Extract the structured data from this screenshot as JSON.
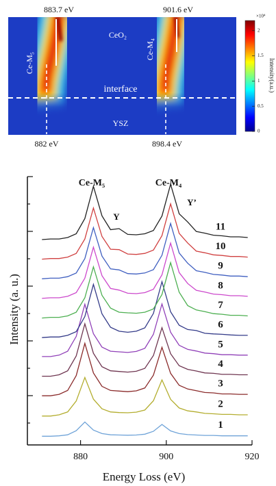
{
  "chart_data": [
    {
      "type": "heatmap",
      "peak_labels": [
        "883.7 eV",
        "901.6 eV"
      ],
      "onset_labels": [
        "882 eV",
        "898.4 eV"
      ],
      "region_labels": [
        "CeO₂",
        "interface",
        "YSZ"
      ],
      "edge_labels": [
        "Ce-M₅",
        "Ce-M₄"
      ],
      "colorbar_label": "Intensity(a.u.)",
      "colorbar_exponent": "×10⁴",
      "clim": [
        0,
        2.2
      ],
      "cticks": [
        0,
        0.5,
        1,
        1.5,
        2
      ]
    },
    {
      "type": "line",
      "xlabel": "Energy Loss (eV)",
      "ylabel": "Intensity (a. u.)",
      "annotations": [
        "Ce-M₅",
        "Ce-M₄",
        "Y",
        "Y’"
      ],
      "xlim": [
        870,
        920
      ],
      "xticks": [
        880,
        900,
        920
      ],
      "ylim": [
        0,
        13
      ],
      "x": [
        871,
        873,
        875,
        877,
        879,
        881,
        883,
        885,
        887,
        889,
        891,
        893,
        895,
        897,
        899,
        901,
        903,
        905,
        907,
        909,
        911,
        913,
        915,
        917,
        919
      ],
      "series": [
        {
          "name": "1",
          "color": "#6fa3d8",
          "values": [
            0.42,
            0.42,
            0.44,
            0.49,
            0.69,
            1.11,
            0.72,
            0.55,
            0.49,
            0.48,
            0.47,
            0.48,
            0.52,
            0.66,
            0.99,
            0.68,
            0.55,
            0.5,
            0.48,
            0.46,
            0.46,
            0.44,
            0.44,
            0.44,
            0.44
          ]
        },
        {
          "name": "2",
          "color": "#b3ad2e",
          "values": [
            1.4,
            1.4,
            1.46,
            1.6,
            2.13,
            3.27,
            2.22,
            1.75,
            1.6,
            1.57,
            1.56,
            1.59,
            1.69,
            2.14,
            3.15,
            2.21,
            1.79,
            1.65,
            1.6,
            1.53,
            1.51,
            1.48,
            1.48,
            1.46,
            1.46
          ]
        },
        {
          "name": "3",
          "color": "#8a2a2a",
          "values": [
            2.38,
            2.38,
            2.45,
            2.64,
            3.36,
            4.92,
            3.49,
            2.84,
            2.64,
            2.61,
            2.58,
            2.62,
            2.76,
            3.38,
            4.73,
            3.47,
            2.89,
            2.71,
            2.63,
            2.54,
            2.52,
            2.47,
            2.47,
            2.45,
            2.45
          ]
        },
        {
          "name": "4",
          "color": "#6e3550",
          "values": [
            3.33,
            3.33,
            3.4,
            3.59,
            4.31,
            5.87,
            4.44,
            3.79,
            3.59,
            3.56,
            3.53,
            3.57,
            3.71,
            4.33,
            5.68,
            4.42,
            3.84,
            3.66,
            3.58,
            3.49,
            3.47,
            3.42,
            3.42,
            3.4,
            3.4
          ]
        },
        {
          "name": "5",
          "color": "#9040b8",
          "values": [
            4.28,
            4.28,
            4.35,
            4.54,
            5.26,
            6.82,
            5.39,
            4.74,
            4.54,
            4.51,
            4.48,
            4.53,
            4.68,
            5.36,
            6.83,
            5.46,
            4.83,
            4.63,
            4.55,
            4.45,
            4.42,
            4.37,
            4.37,
            4.35,
            4.35
          ]
        },
        {
          "name": "6",
          "color": "#333a88",
          "values": [
            5.2,
            5.23,
            5.23,
            5.31,
            5.49,
            6.22,
            7.78,
            6.35,
            5.7,
            5.51,
            5.46,
            5.51,
            5.67,
            6.37,
            7.91,
            6.45,
            5.8,
            5.59,
            5.54,
            5.41,
            5.38,
            5.36,
            5.33,
            5.31,
            5.31
          ]
        },
        {
          "name": "7",
          "color": "#4caf50",
          "values": [
            6.15,
            6.18,
            6.18,
            6.25,
            6.43,
            7.13,
            8.63,
            7.25,
            6.63,
            6.43,
            6.4,
            6.38,
            6.43,
            6.59,
            7.29,
            8.83,
            7.4,
            6.75,
            6.54,
            6.46,
            6.36,
            6.33,
            6.28,
            6.28,
            6.25
          ]
        },
        {
          "name": "8",
          "color": "#cc48cc",
          "values": [
            7.1,
            7.13,
            7.13,
            7.2,
            7.38,
            8.08,
            9.58,
            8.2,
            7.58,
            7.5,
            7.35,
            7.33,
            7.38,
            7.54,
            8.24,
            9.78,
            8.35,
            7.82,
            7.49,
            7.41,
            7.31,
            7.28,
            7.23,
            7.23,
            7.2
          ]
        },
        {
          "name": "9",
          "color": "#3f5fc0",
          "values": [
            8.05,
            8.08,
            8.08,
            8.15,
            8.33,
            9.03,
            10.53,
            9.15,
            8.53,
            8.48,
            8.3,
            8.28,
            8.33,
            8.49,
            9.19,
            10.73,
            9.3,
            8.8,
            8.44,
            8.36,
            8.26,
            8.23,
            8.18,
            8.18,
            8.15
          ]
        },
        {
          "name": "10",
          "color": "#d04040",
          "values": [
            9.0,
            9.03,
            9.03,
            9.1,
            9.28,
            9.98,
            11.48,
            10.1,
            9.48,
            9.46,
            9.25,
            9.23,
            9.28,
            9.44,
            10.14,
            11.68,
            10.25,
            9.78,
            9.39,
            9.31,
            9.21,
            9.18,
            9.13,
            9.13,
            9.1
          ]
        },
        {
          "name": "11",
          "color": "#222222",
          "values": [
            9.95,
            9.98,
            9.98,
            10.05,
            10.23,
            10.97,
            12.53,
            11.1,
            10.43,
            10.48,
            10.2,
            10.18,
            10.23,
            10.39,
            11.09,
            12.63,
            11.2,
            10.8,
            10.34,
            10.26,
            10.16,
            10.13,
            10.08,
            10.08,
            10.05
          ]
        }
      ]
    }
  ]
}
